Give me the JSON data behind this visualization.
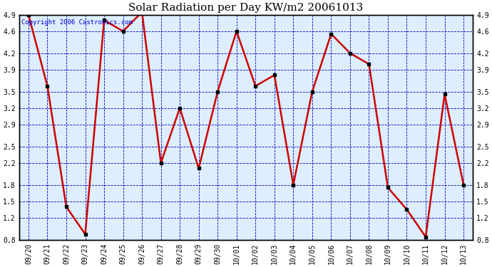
{
  "title": "Solar Radiation per Day KW/m2 20061013",
  "copyright_text": "Copyright 2006 Castronics.com",
  "x_labels": [
    "09/20",
    "09/21",
    "09/22",
    "09/23",
    "09/24",
    "09/25",
    "09/26",
    "09/27",
    "09/28",
    "09/29",
    "09/30",
    "10/01",
    "10/02",
    "10/03",
    "10/04",
    "10/05",
    "10/06",
    "10/07",
    "10/08",
    "10/09",
    "10/10",
    "10/11",
    "10/12",
    "10/13"
  ],
  "y_values": [
    4.9,
    3.6,
    1.4,
    0.9,
    4.8,
    4.6,
    4.95,
    2.2,
    3.2,
    2.1,
    3.5,
    4.6,
    3.6,
    3.8,
    1.8,
    3.5,
    4.55,
    4.2,
    4.0,
    1.75,
    1.35,
    0.85,
    3.45,
    1.8
  ],
  "line_color": "#cc0000",
  "marker_color": "#000000",
  "bg_color": "#ffffff",
  "plot_bg_color": "#ddeeff",
  "grid_color": "#0000bb",
  "axis_color": "#000000",
  "title_color": "#000000",
  "border_color": "#000000",
  "ylim_min": 0.8,
  "ylim_max": 4.9,
  "yticks": [
    0.8,
    1.2,
    1.5,
    1.8,
    2.2,
    2.5,
    2.9,
    3.2,
    3.5,
    3.9,
    4.2,
    4.6,
    4.9
  ],
  "title_fontsize": 11,
  "tick_fontsize": 7,
  "copyright_fontsize": 6.5
}
